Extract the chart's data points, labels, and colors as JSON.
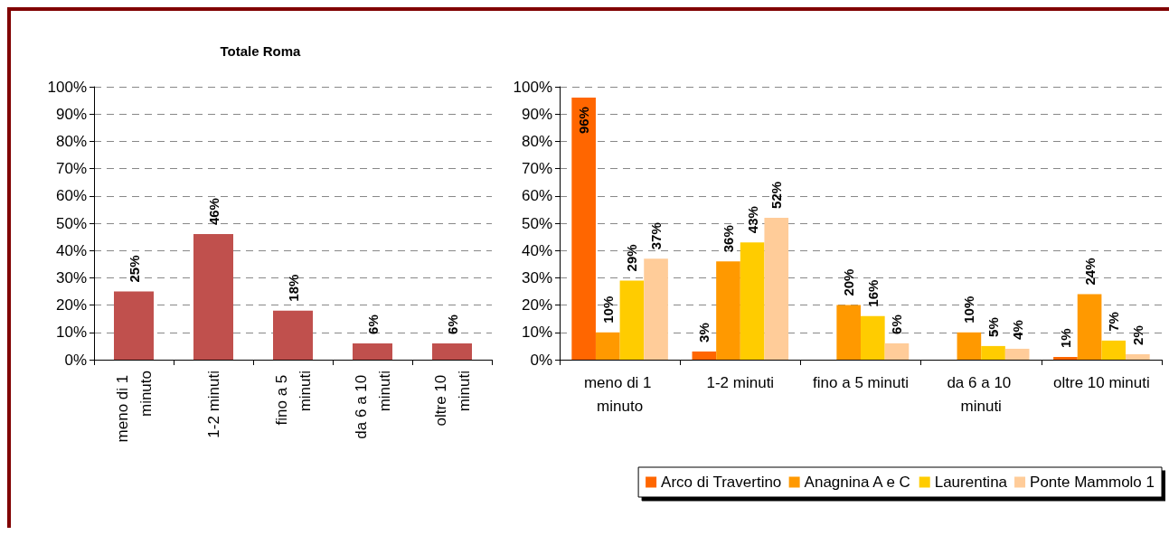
{
  "chart_data": [
    {
      "type": "bar",
      "title": "Totale Roma",
      "categories": [
        "meno di 1 minuto",
        "1-2 minuti",
        "fino a 5 minuti",
        "da 6 a 10 minuti",
        "oltre 10 minuti"
      ],
      "series": [
        {
          "color": "#c0504d",
          "values": [
            25,
            46,
            18,
            6,
            6
          ],
          "value_labels": [
            "25%",
            "46%",
            "18%",
            "6%",
            "6%"
          ]
        }
      ],
      "ylim": [
        0,
        100
      ],
      "yticks": [
        {
          "value": 0,
          "label": "0%"
        },
        {
          "value": 10,
          "label": "10%"
        },
        {
          "value": 20,
          "label": "20%"
        },
        {
          "value": 30,
          "label": "30%"
        },
        {
          "value": 40,
          "label": "40%"
        },
        {
          "value": 50,
          "label": "50%"
        },
        {
          "value": 60,
          "label": "60%"
        },
        {
          "value": 70,
          "label": "70%"
        },
        {
          "value": 80,
          "label": "80%"
        },
        {
          "value": 90,
          "label": "90%"
        },
        {
          "value": 100,
          "label": "100%"
        }
      ],
      "grid": "y",
      "legend": false
    },
    {
      "type": "bar",
      "categories": [
        "meno di 1 minuto",
        "1-2 minuti",
        "fino a 5 minuti",
        "da 6 a 10 minuti",
        "oltre 10 minuti"
      ],
      "series": [
        {
          "name": "Arco di Travertino",
          "color": "#ff6600",
          "values": [
            96,
            3,
            null,
            null,
            1
          ],
          "value_labels": [
            "96%",
            "3%",
            null,
            null,
            "1%"
          ]
        },
        {
          "name": "Anagnina A e C",
          "color": "#ff9900",
          "values": [
            10,
            36,
            20,
            10,
            24
          ],
          "value_labels": [
            "10%",
            "36%",
            "20%",
            "10%",
            "24%"
          ]
        },
        {
          "name": "Laurentina",
          "color": "#ffcc00",
          "values": [
            29,
            43,
            16,
            5,
            7
          ],
          "value_labels": [
            "29%",
            "43%",
            "16%",
            "5%",
            "7%"
          ]
        },
        {
          "name": "Ponte Mammolo 1",
          "color": "#ffcc99",
          "values": [
            37,
            52,
            6,
            4,
            2
          ],
          "value_labels": [
            "37%",
            "52%",
            "6%",
            "4%",
            "2%"
          ]
        }
      ],
      "ylim": [
        0,
        100
      ],
      "yticks": [
        {
          "value": 0,
          "label": "0%"
        },
        {
          "value": 10,
          "label": "10%"
        },
        {
          "value": 20,
          "label": "20%"
        },
        {
          "value": 30,
          "label": "30%"
        },
        {
          "value": 40,
          "label": "40%"
        },
        {
          "value": 50,
          "label": "50%"
        },
        {
          "value": 60,
          "label": "60%"
        },
        {
          "value": 70,
          "label": "70%"
        },
        {
          "value": 80,
          "label": "80%"
        },
        {
          "value": 90,
          "label": "90%"
        },
        {
          "value": 100,
          "label": "100%"
        }
      ],
      "grid": "y",
      "legend": "bottom right"
    }
  ]
}
